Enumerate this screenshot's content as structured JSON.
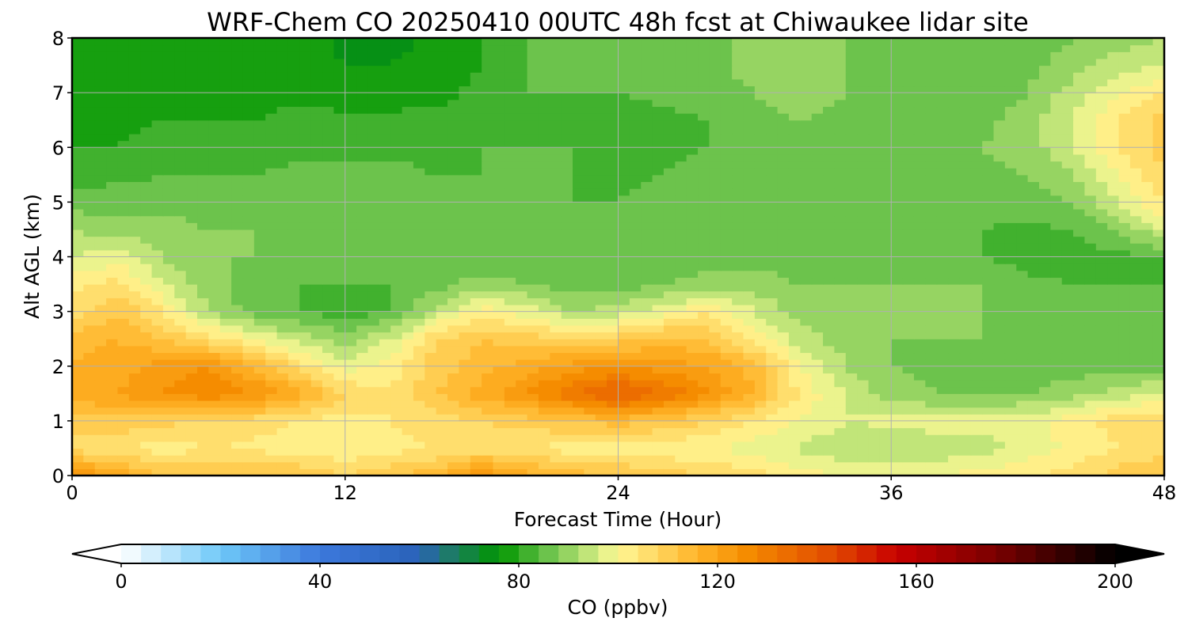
{
  "chart_data": {
    "type": "heatmap",
    "title": "WRF-Chem CO  20250410 00UTC 48h fcst at Chiwaukee lidar site",
    "xlabel": "Forecast Time (Hour)",
    "ylabel": "Alt AGL (km)",
    "xlim": [
      0,
      48
    ],
    "ylim": [
      0,
      8
    ],
    "xticks": [
      0,
      12,
      24,
      36,
      48
    ],
    "yticks": [
      0,
      1,
      2,
      3,
      4,
      5,
      6,
      7,
      8
    ],
    "grid": true,
    "x_hours": [
      0,
      2,
      4,
      6,
      8,
      10,
      12,
      14,
      16,
      18,
      20,
      22,
      24,
      26,
      28,
      30,
      32,
      34,
      36,
      38,
      40,
      42,
      44,
      46,
      48
    ],
    "y_km": [
      0,
      0.5,
      1,
      1.5,
      2,
      2.5,
      3,
      3.5,
      4,
      4.5,
      5,
      5.5,
      6,
      6.5,
      7,
      7.5,
      8
    ],
    "z_ppbv": [
      [
        125,
        120,
        112,
        112,
        112,
        112,
        108,
        112,
        114,
        124,
        118,
        114,
        112,
        110,
        108,
        106,
        102,
        100,
        100,
        100,
        102,
        104,
        106,
        110,
        112
      ],
      [
        106,
        104,
        102,
        104,
        103,
        102,
        100,
        102,
        104,
        106,
        104,
        102,
        102,
        101,
        100,
        98,
        95,
        93,
        93,
        93,
        94,
        97,
        101,
        104,
        106
      ],
      [
        110,
        111,
        109,
        108,
        106,
        104,
        102,
        104,
        106,
        108,
        110,
        112,
        114,
        111,
        108,
        104,
        100,
        96,
        97,
        98,
        98,
        99,
        102,
        106,
        108
      ],
      [
        118,
        120,
        124,
        127,
        124,
        118,
        108,
        104,
        112,
        118,
        124,
        132,
        138,
        132,
        124,
        116,
        103,
        96,
        90,
        88,
        88,
        88,
        90,
        94,
        97
      ],
      [
        116,
        118,
        122,
        124,
        116,
        106,
        98,
        102,
        110,
        114,
        118,
        122,
        124,
        122,
        120,
        114,
        100,
        92,
        88,
        86,
        86,
        86,
        86,
        86,
        86
      ],
      [
        114,
        116,
        112,
        106,
        100,
        94,
        90,
        96,
        108,
        112,
        110,
        108,
        110,
        114,
        112,
        102,
        94,
        90,
        88,
        88,
        88,
        86,
        86,
        86,
        86
      ],
      [
        106,
        112,
        104,
        92,
        86,
        84,
        82,
        84,
        94,
        102,
        98,
        92,
        94,
        98,
        104,
        96,
        90,
        88,
        88,
        88,
        88,
        86,
        86,
        85,
        85
      ],
      [
        102,
        106,
        96,
        90,
        86,
        84,
        84,
        84,
        86,
        90,
        88,
        86,
        86,
        88,
        90,
        90,
        88,
        88,
        88,
        88,
        88,
        85,
        84,
        84,
        84
      ],
      [
        96,
        98,
        92,
        88,
        88,
        86,
        86,
        85,
        85,
        85,
        85,
        85,
        85,
        85,
        86,
        86,
        86,
        86,
        86,
        86,
        84,
        82,
        82,
        83,
        84
      ],
      [
        92,
        90,
        90,
        88,
        88,
        86,
        85,
        85,
        85,
        84,
        84,
        84,
        85,
        85,
        85,
        85,
        85,
        85,
        84,
        84,
        84,
        83,
        84,
        88,
        96
      ],
      [
        86,
        86,
        86,
        86,
        86,
        85,
        85,
        85,
        85,
        84,
        84,
        84,
        84,
        85,
        85,
        85,
        86,
        86,
        86,
        86,
        86,
        86,
        88,
        96,
        104
      ],
      [
        82,
        83,
        84,
        84,
        84,
        85,
        85,
        85,
        84,
        84,
        84,
        84,
        83,
        84,
        85,
        85,
        86,
        86,
        87,
        87,
        87,
        88,
        92,
        100,
        108
      ],
      [
        80,
        80,
        81,
        81,
        82,
        83,
        83,
        83,
        83,
        84,
        84,
        84,
        82,
        83,
        84,
        84,
        85,
        86,
        86,
        87,
        88,
        90,
        96,
        104,
        110
      ],
      [
        79,
        79,
        80,
        80,
        80,
        81,
        81,
        81,
        81,
        82,
        83,
        84,
        82,
        83,
        84,
        86,
        88,
        86,
        86,
        86,
        87,
        90,
        96,
        104,
        110
      ],
      [
        79,
        79,
        79,
        79,
        79,
        79,
        78,
        78,
        79,
        81,
        84,
        84,
        84,
        85,
        86,
        88,
        90,
        88,
        86,
        86,
        86,
        88,
        94,
        100,
        104
      ],
      [
        79,
        79,
        79,
        79,
        79,
        78,
        76,
        76,
        78,
        80,
        84,
        86,
        84,
        84,
        86,
        90,
        92,
        88,
        86,
        86,
        86,
        87,
        90,
        94,
        96
      ],
      [
        80,
        79,
        79,
        79,
        79,
        78,
        75,
        74,
        77,
        80,
        84,
        86,
        85,
        85,
        86,
        90,
        92,
        88,
        86,
        86,
        86,
        86,
        88,
        90,
        92
      ]
    ],
    "colorbar": {
      "label": "CO  (ppbv)",
      "vmin": 0,
      "vmax": 200,
      "step": 4,
      "ticks": [
        0,
        40,
        80,
        120,
        160,
        200
      ],
      "extend": "both",
      "colormap_stops": [
        {
          "v": 0,
          "color": "#ffffff"
        },
        {
          "v": 20,
          "color": "#6ec8f8"
        },
        {
          "v": 40,
          "color": "#3c78dc"
        },
        {
          "v": 60,
          "color": "#2a62b8"
        },
        {
          "v": 66,
          "color": "#1e7a6a"
        },
        {
          "v": 76,
          "color": "#009600"
        },
        {
          "v": 86,
          "color": "#6cc34c"
        },
        {
          "v": 96,
          "color": "#d6ee84"
        },
        {
          "v": 100,
          "color": "#fff796"
        },
        {
          "v": 116,
          "color": "#ffb428"
        },
        {
          "v": 126,
          "color": "#f58c00"
        },
        {
          "v": 144,
          "color": "#e04600"
        },
        {
          "v": 156,
          "color": "#c80000"
        },
        {
          "v": 176,
          "color": "#7a0000"
        },
        {
          "v": 200,
          "color": "#000000"
        }
      ]
    }
  }
}
